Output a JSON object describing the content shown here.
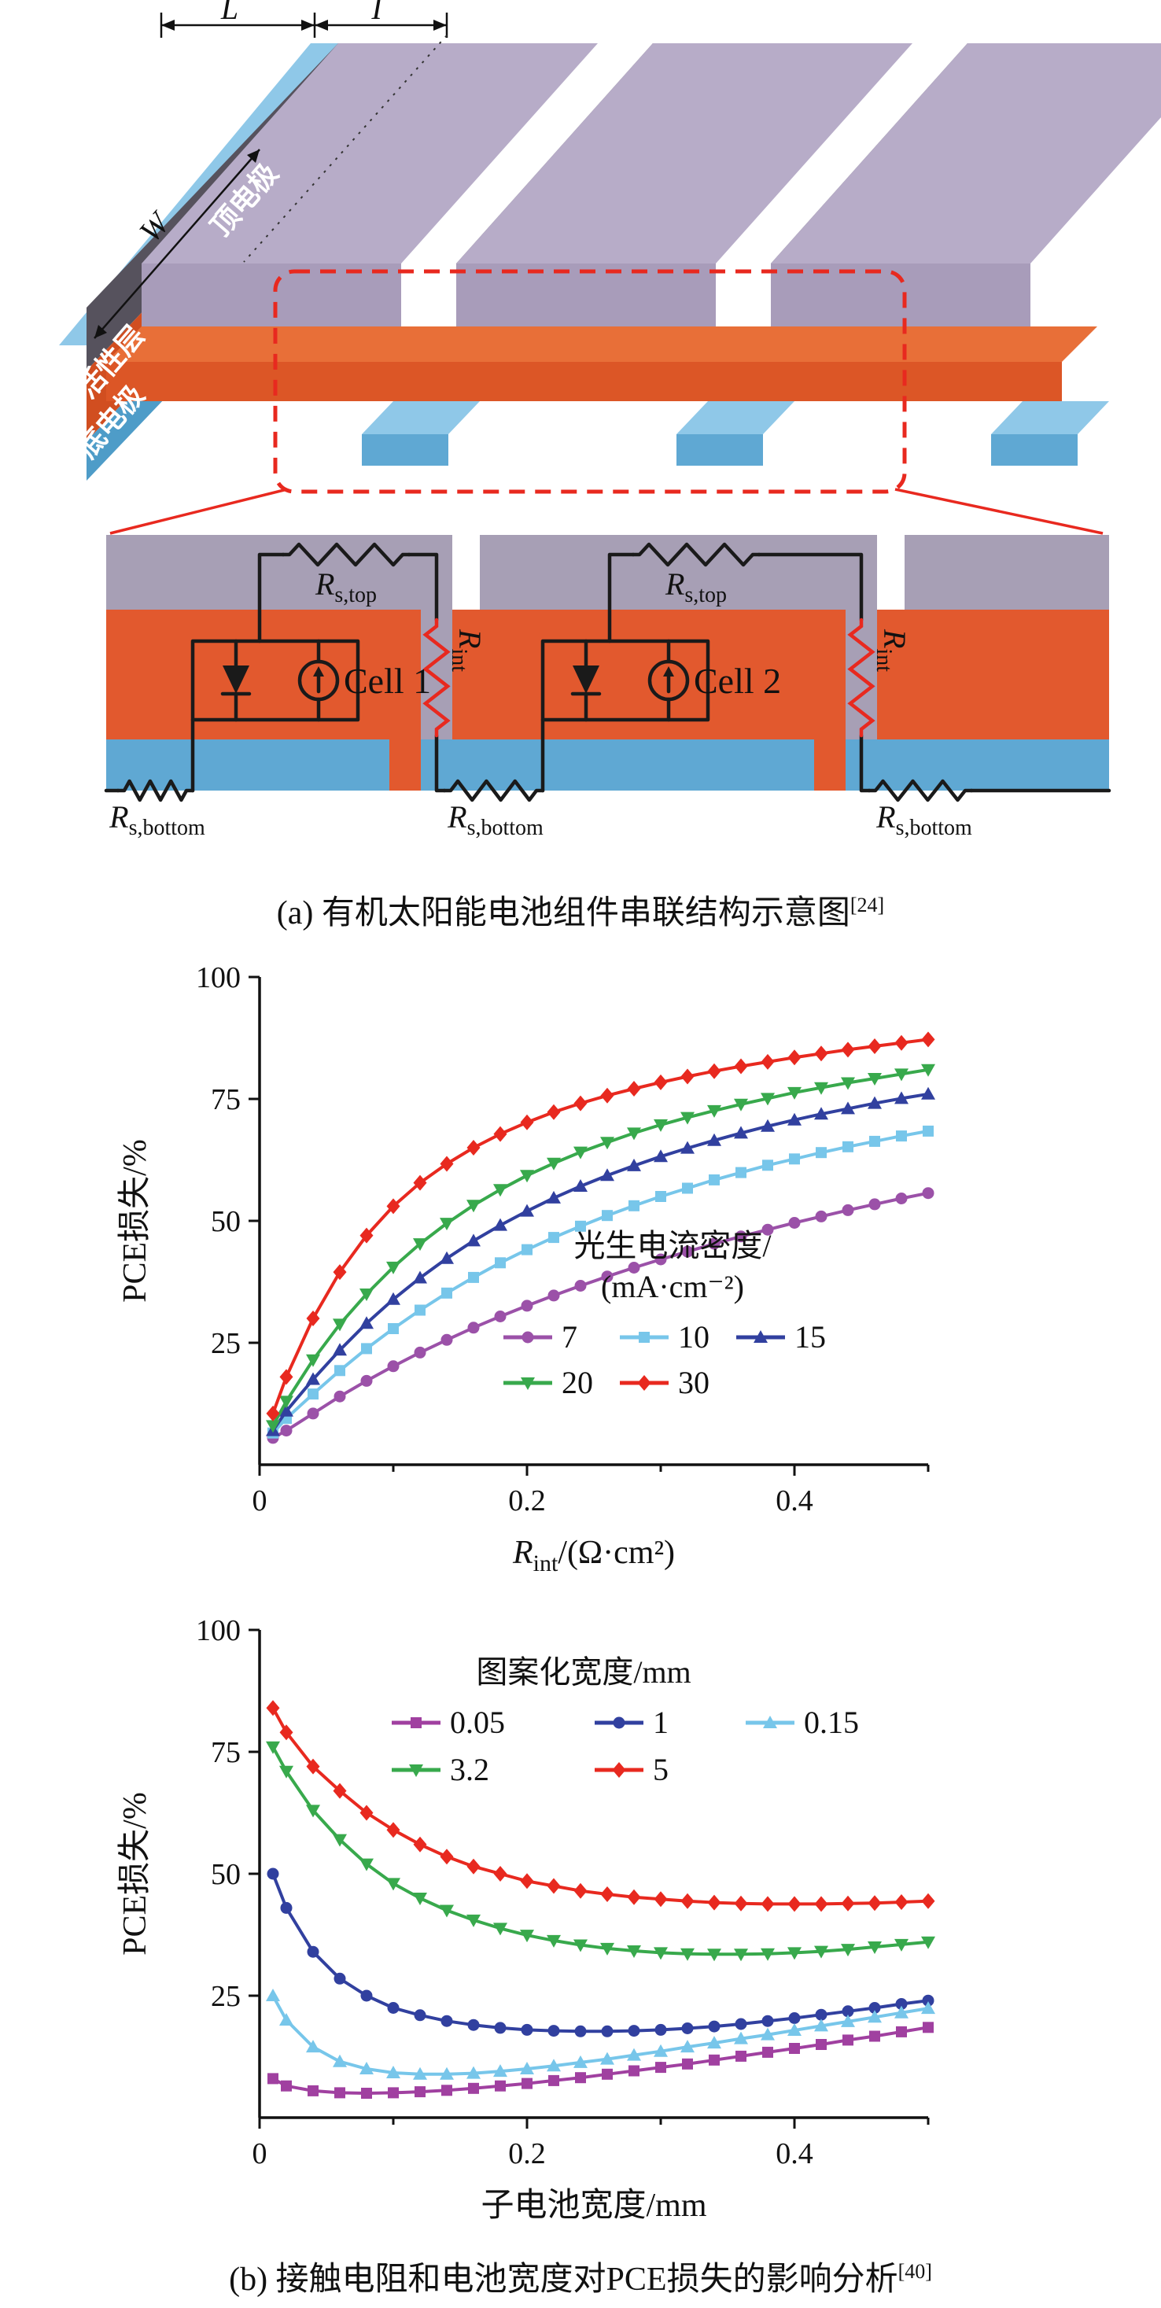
{
  "figure": {
    "caption_a": {
      "text": "(a) 有机太阳能电池组件串联结构示意图",
      "sup": "[24]"
    },
    "caption_b": {
      "text": "(b) 接触电阻和电池宽度对PCE损失的影响分析",
      "sup": "[40]"
    }
  },
  "diagram3d": {
    "dim_length": "L",
    "dim_gap": "I",
    "dim_width": "W",
    "layer_top": "顶电极",
    "layer_active": "活性层",
    "layer_bottom": "底电极"
  },
  "circuit": {
    "cells": [
      "Cell 1",
      "Cell 2"
    ],
    "r": "R",
    "rs_top_sub": "s,top",
    "rs_bottom_sub": "s,bottom",
    "r_int_sub": "int"
  },
  "colors": {
    "electrode_top_face": "#B7ACC8",
    "electrode_front_face": "#A89CBA",
    "electrode_side_dark": "#56525D",
    "active_top_face": "#E86F38",
    "active_front_face": "#DC5626",
    "active_side_face": "#D14E20",
    "bottom_top_face": "#8FC8E8",
    "bottom_front_face": "#5FA8D3",
    "bottom_side_face": "#4E9CC8",
    "circuit_electrode": "#A79FB5",
    "circuit_active": "#E2592E",
    "circuit_bottom": "#5FA8D3",
    "accent_red": "#E8291F"
  },
  "chart_data": [
    {
      "type": "line",
      "xlabel_parts": {
        "pre": "R",
        "sub": "int",
        "post": "/(Ω·cm²)"
      },
      "ylabel": "PCE损失/%",
      "xlim": [
        0,
        0.5
      ],
      "ylim": [
        0,
        100
      ],
      "xticks": [
        0,
        0.2,
        0.4
      ],
      "xticks_minor": [
        0.1,
        0.3,
        0.5
      ],
      "yticks": [
        25,
        50,
        75,
        100
      ],
      "grid": false,
      "legend": {
        "title_lines": [
          "光生电流密度/",
          "(mA·cm⁻²)"
        ],
        "position": "inside-bottom-right"
      },
      "legend_rows": [
        [
          "7",
          "10",
          "15"
        ],
        [
          "20",
          "30"
        ]
      ],
      "x": [
        0.01,
        0.02,
        0.04,
        0.06,
        0.08,
        0.1,
        0.12,
        0.14,
        0.16,
        0.18,
        0.2,
        0.22,
        0.24,
        0.26,
        0.28,
        0.3,
        0.32,
        0.34,
        0.36,
        0.38,
        0.4,
        0.42,
        0.44,
        0.46,
        0.48,
        0.5
      ],
      "series": [
        {
          "name": "7",
          "color": "#9B51A8",
          "marker": "circle",
          "values": [
            5.5,
            7,
            10.5,
            14,
            17.2,
            20.2,
            23,
            25.6,
            28.1,
            30.4,
            32.6,
            34.7,
            36.7,
            38.6,
            40.4,
            42.1,
            43.7,
            45.3,
            46.8,
            48.2,
            49.6,
            50.9,
            52.2,
            53.4,
            54.6,
            55.7
          ]
        },
        {
          "name": "10",
          "color": "#77C6EA",
          "marker": "square",
          "values": [
            6.5,
            9.5,
            14.5,
            19.3,
            23.8,
            27.9,
            31.7,
            35.2,
            38.4,
            41.4,
            44.1,
            46.6,
            48.9,
            51.1,
            53.1,
            55,
            56.7,
            58.4,
            59.9,
            61.4,
            62.7,
            64,
            65.2,
            66.3,
            67.4,
            68.4
          ]
        },
        {
          "name": "15",
          "color": "#31409F",
          "marker": "triangle-up",
          "values": [
            7,
            11,
            17.5,
            23.5,
            29,
            33.9,
            38.3,
            42.3,
            45.9,
            49.1,
            52,
            54.7,
            57.1,
            59.3,
            61.3,
            63.2,
            64.9,
            66.5,
            68,
            69.4,
            70.7,
            71.9,
            73,
            74.1,
            75.1,
            76
          ]
        },
        {
          "name": "20",
          "color": "#38A94C",
          "marker": "triangle-down",
          "values": [
            8,
            13,
            21.5,
            28.8,
            35,
            40.5,
            45.3,
            49.5,
            53.2,
            56.4,
            59.3,
            61.8,
            64.1,
            66.1,
            68,
            69.7,
            71.2,
            72.6,
            73.9,
            75.1,
            76.3,
            77.3,
            78.3,
            79.2,
            80.1,
            81
          ]
        },
        {
          "name": "30",
          "color": "#E8291F",
          "marker": "diamond",
          "values": [
            10.5,
            18,
            30,
            39.5,
            47,
            53,
            57.8,
            61.7,
            65,
            67.8,
            70.2,
            72.3,
            74.1,
            75.7,
            77.1,
            78.4,
            79.6,
            80.7,
            81.7,
            82.6,
            83.5,
            84.3,
            85.1,
            85.8,
            86.5,
            87.2
          ]
        }
      ]
    },
    {
      "type": "line",
      "xlabel": "子电池宽度/mm",
      "ylabel": "PCE损失/%",
      "xlim": [
        0,
        0.5
      ],
      "ylim": [
        0,
        100
      ],
      "xticks": [
        0,
        0.2,
        0.4
      ],
      "xticks_minor": [
        0.1,
        0.3,
        0.5
      ],
      "yticks": [
        25,
        50,
        75,
        100
      ],
      "grid": false,
      "legend": {
        "title_lines": [
          "图案化宽度/mm"
        ],
        "position": "inside-top-center"
      },
      "legend_rows": [
        [
          "0.05",
          "1",
          "0.15"
        ],
        [
          "3.2",
          "5"
        ]
      ],
      "x": [
        0.01,
        0.02,
        0.04,
        0.06,
        0.08,
        0.1,
        0.12,
        0.14,
        0.16,
        0.18,
        0.2,
        0.22,
        0.24,
        0.26,
        0.28,
        0.3,
        0.32,
        0.34,
        0.36,
        0.38,
        0.4,
        0.42,
        0.44,
        0.46,
        0.48,
        0.5
      ],
      "series": [
        {
          "name": "0.05",
          "color": "#A040A0",
          "marker": "square",
          "values": [
            8,
            6.5,
            5.5,
            5.1,
            5,
            5.1,
            5.3,
            5.6,
            6,
            6.5,
            7,
            7.6,
            8.2,
            8.9,
            9.6,
            10.3,
            11,
            11.8,
            12.6,
            13.4,
            14.2,
            15,
            15.9,
            16.7,
            17.6,
            18.5
          ]
        },
        {
          "name": "1",
          "color": "#31409F",
          "marker": "circle",
          "values": [
            50,
            43,
            34,
            28.5,
            25,
            22.5,
            21,
            19.8,
            19,
            18.4,
            18,
            17.8,
            17.7,
            17.7,
            17.8,
            18,
            18.3,
            18.7,
            19.2,
            19.8,
            20.4,
            21.1,
            21.8,
            22.5,
            23.3,
            24
          ]
        },
        {
          "name": "0.15",
          "color": "#77C6EA",
          "marker": "triangle-up",
          "values": [
            25,
            20,
            14.5,
            11.5,
            10,
            9.2,
            8.9,
            8.9,
            9.1,
            9.5,
            10,
            10.6,
            11.3,
            12,
            12.8,
            13.6,
            14.5,
            15.3,
            16.2,
            17,
            17.9,
            18.8,
            19.7,
            20.6,
            21.5,
            22.4
          ]
        },
        {
          "name": "3.2",
          "color": "#38A94C",
          "marker": "triangle-down",
          "values": [
            76,
            71,
            63,
            57,
            52,
            48,
            45,
            42.5,
            40.5,
            38.8,
            37.4,
            36.3,
            35.4,
            34.7,
            34.2,
            33.8,
            33.6,
            33.5,
            33.5,
            33.6,
            33.8,
            34.1,
            34.5,
            35,
            35.5,
            36
          ]
        },
        {
          "name": "5",
          "color": "#E8291F",
          "marker": "diamond",
          "values": [
            84,
            79,
            72,
            67,
            62.5,
            59,
            56,
            53.5,
            51.5,
            50,
            48.5,
            47.5,
            46.5,
            45.8,
            45.2,
            44.8,
            44.4,
            44.1,
            43.9,
            43.8,
            43.8,
            43.8,
            43.9,
            44,
            44.2,
            44.4
          ]
        }
      ]
    }
  ]
}
